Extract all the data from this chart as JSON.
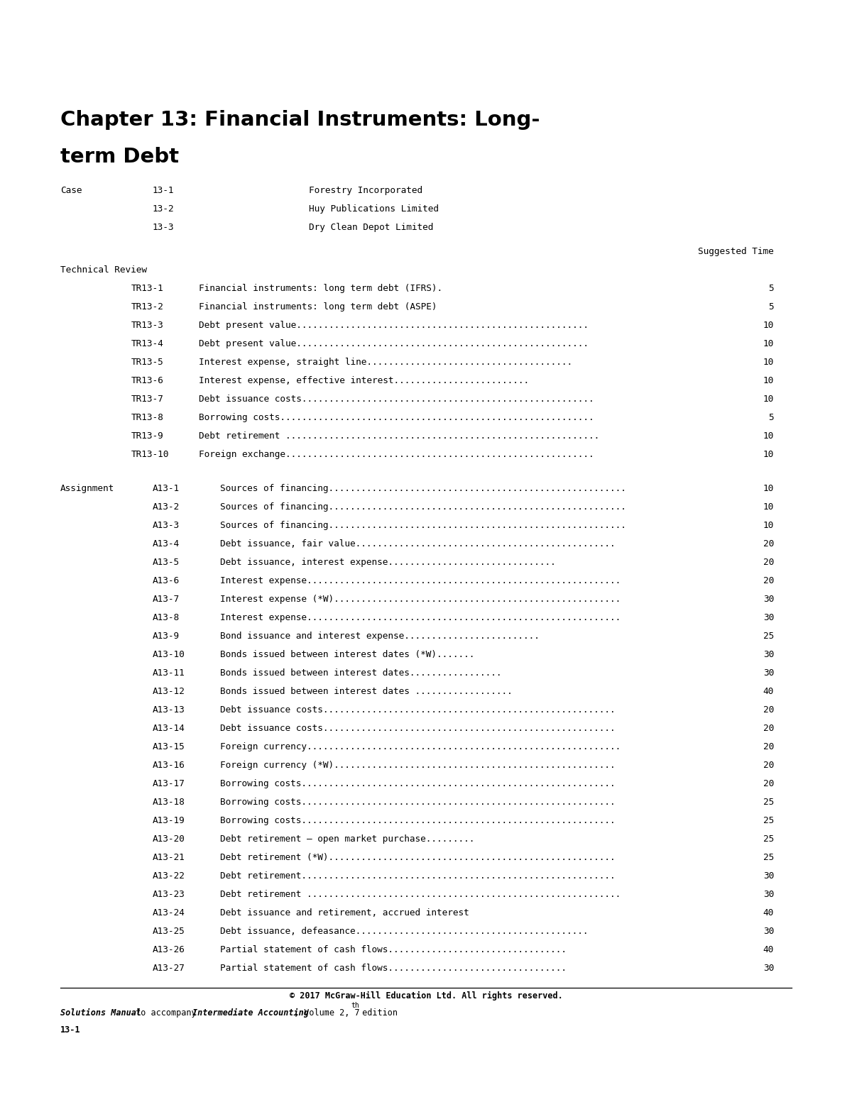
{
  "title_line1": "Chapter 13: Financial Instruments: Long-",
  "title_line2": "term Debt",
  "bg_color": "#ffffff",
  "cases": [
    {
      "label": "Case",
      "code": "13-1",
      "description": "Forestry Incorporated"
    },
    {
      "label": "",
      "code": "13-2",
      "description": "Huy Publications Limited"
    },
    {
      "label": "",
      "code": "13-3",
      "description": "Dry Clean Depot Limited"
    }
  ],
  "suggested_time_label": "Suggested Time",
  "technical_review_label": "Technical Review",
  "tr_entries": [
    {
      "code": "TR13-1",
      "description": "Financial instruments: long term debt (IFRS).",
      "time": "5"
    },
    {
      "code": "TR13-2",
      "description": "Financial instruments: long term debt (ASPE)",
      "time": "5"
    },
    {
      "code": "TR13-3",
      "description": "Debt present value......................................................",
      "time": "10"
    },
    {
      "code": "TR13-4",
      "description": "Debt present value......................................................",
      "time": "10"
    },
    {
      "code": "TR13-5",
      "description": "Interest expense, straight line......................................",
      "time": "10"
    },
    {
      "code": "TR13-6",
      "description": "Interest expense, effective interest.........................",
      "time": "10"
    },
    {
      "code": "TR13-7",
      "description": "Debt issuance costs......................................................",
      "time": "10"
    },
    {
      "code": "TR13-8",
      "description": "Borrowing costs..........................................................",
      "time": "5"
    },
    {
      "code": "TR13-9",
      "description": "Debt retirement ..........................................................",
      "time": "10"
    },
    {
      "code": "TR13-10",
      "description": "Foreign exchange.........................................................",
      "time": "10"
    }
  ],
  "assignment_label": "Assignment",
  "a_entries": [
    {
      "code": "A13-1",
      "description": "Sources of financing.......................................................",
      "time": "10"
    },
    {
      "code": "A13-2",
      "description": "Sources of financing.......................................................",
      "time": "10"
    },
    {
      "code": "A13-3",
      "description": "Sources of financing.......................................................",
      "time": "10"
    },
    {
      "code": "A13-4",
      "description": "Debt issuance, fair value................................................",
      "time": "20"
    },
    {
      "code": "A13-5",
      "description": "Debt issuance, interest expense...............................",
      "time": "20"
    },
    {
      "code": "A13-6",
      "description": "Interest expense..........................................................",
      "time": "20"
    },
    {
      "code": "A13-7",
      "description": "Interest expense (*W).....................................................",
      "time": "30"
    },
    {
      "code": "A13-8",
      "description": "Interest expense..........................................................",
      "time": "30"
    },
    {
      "code": "A13-9",
      "description": "Bond issuance and interest expense.........................",
      "time": "25"
    },
    {
      "code": "A13-10",
      "description": "Bonds issued between interest dates (*W).......",
      "time": "30"
    },
    {
      "code": "A13-11",
      "description": "Bonds issued between interest dates.................",
      "time": "30"
    },
    {
      "code": "A13-12",
      "description": "Bonds issued between interest dates ..................",
      "time": "40"
    },
    {
      "code": "A13-13",
      "description": "Debt issuance costs......................................................",
      "time": "20"
    },
    {
      "code": "A13-14",
      "description": "Debt issuance costs......................................................",
      "time": "20"
    },
    {
      "code": "A13-15",
      "description": "Foreign currency..........................................................",
      "time": "20"
    },
    {
      "code": "A13-16",
      "description": "Foreign currency (*W)....................................................",
      "time": "20"
    },
    {
      "code": "A13-17",
      "description": "Borrowing costs..........................................................",
      "time": "20"
    },
    {
      "code": "A13-18",
      "description": "Borrowing costs..........................................................",
      "time": "25"
    },
    {
      "code": "A13-19",
      "description": "Borrowing costs..........................................................",
      "time": "25"
    },
    {
      "code": "A13-20",
      "description": "Debt retirement – open market purchase.........",
      "time": "25"
    },
    {
      "code": "A13-21",
      "description": "Debt retirement (*W).....................................................",
      "time": "25"
    },
    {
      "code": "A13-22",
      "description": "Debt retirement..........................................................",
      "time": "30"
    },
    {
      "code": "A13-23",
      "description": "Debt retirement ..........................................................",
      "time": "30"
    },
    {
      "code": "A13-24",
      "description": "Debt issuance and retirement, accrued interest",
      "time": "40"
    },
    {
      "code": "A13-25",
      "description": "Debt issuance, defeasance...........................................",
      "time": "30"
    },
    {
      "code": "A13-26",
      "description": "Partial statement of cash flows.................................",
      "time": "40"
    },
    {
      "code": "A13-27",
      "description": "Partial statement of cash flows.................................",
      "time": "30"
    }
  ],
  "footer_copyright": "© 2017 McGraw-Hill Education Ltd. All rights reserved.",
  "footer_line1_parts": [
    {
      "text": "Solutions Manual",
      "bold": true,
      "italic": true
    },
    {
      "text": " to accompany ",
      "bold": false,
      "italic": false
    },
    {
      "text": "Intermediate Accounting",
      "bold": true,
      "italic": true
    },
    {
      "text": ", Volume 2, 7",
      "bold": false,
      "italic": false
    },
    {
      "text": "th",
      "bold": false,
      "italic": false,
      "super": true
    },
    {
      "text": " edition",
      "bold": false,
      "italic": false
    }
  ],
  "footer_line2": "13-1"
}
